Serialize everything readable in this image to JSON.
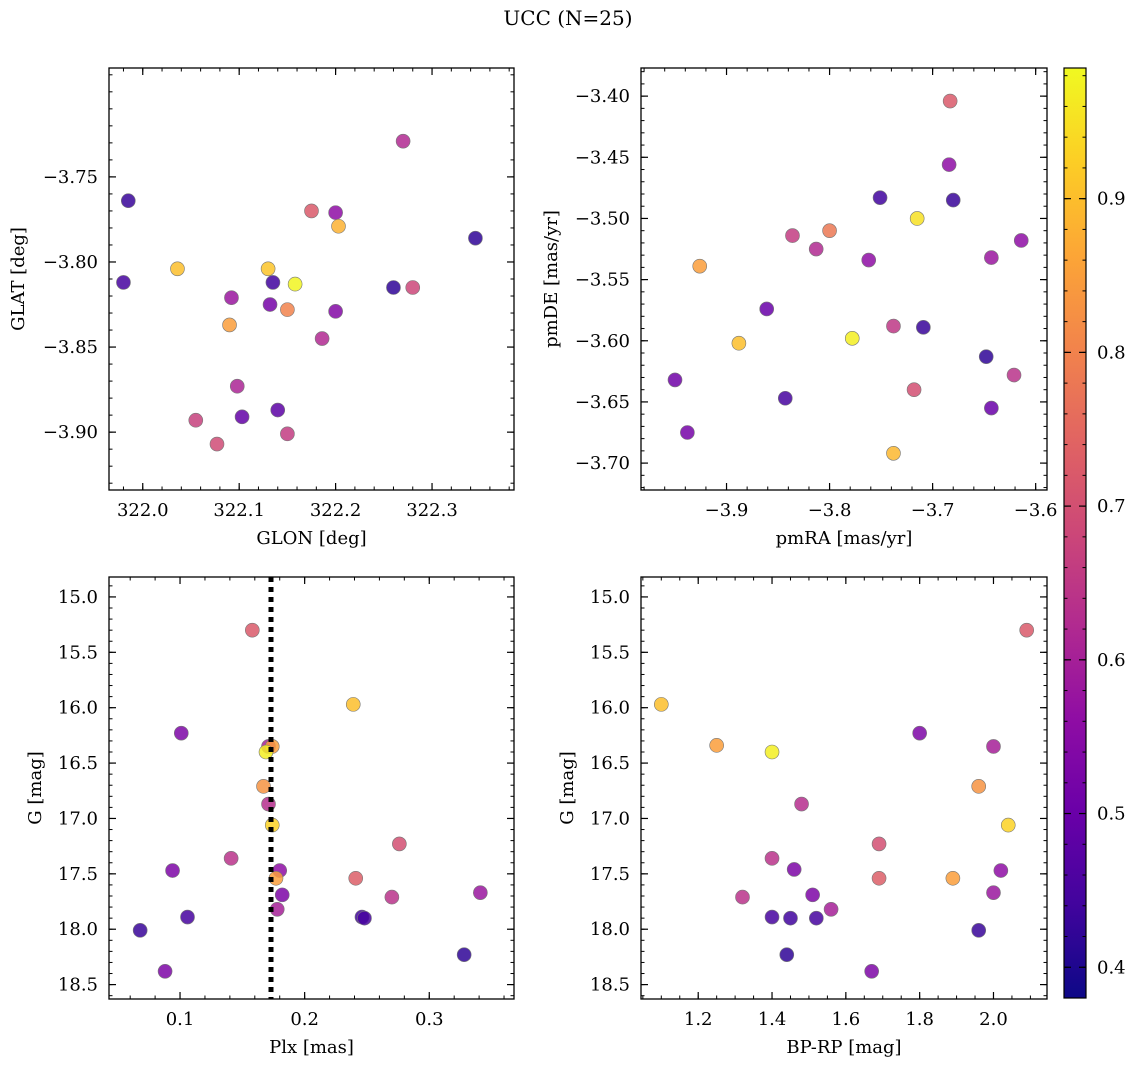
{
  "figure": {
    "title": "UCC (N=25)"
  },
  "colorbar": {
    "min": 0.38,
    "max": 0.985,
    "ticks": [
      0.4,
      0.5,
      0.6,
      0.7,
      0.8,
      0.9
    ],
    "tick_labels": [
      "0.4",
      "0.5",
      "0.6",
      "0.7",
      "0.8",
      "0.9"
    ],
    "colormap": "plasma"
  },
  "chart_data": [
    {
      "type": "scatter",
      "xlabel": "GLON [deg]",
      "ylabel": "GLAT [deg]",
      "xlim": [
        321.965,
        322.385
      ],
      "ylim": [
        -3.934,
        -3.686
      ],
      "xticks": [
        322.0,
        322.1,
        322.2,
        322.3
      ],
      "xtick_labels": [
        "322.0",
        "322.1",
        "322.2",
        "322.3"
      ],
      "yticks": [
        -3.75,
        -3.8,
        -3.85,
        -3.9
      ],
      "ytick_labels": [
        "−3.75",
        "−3.80",
        "−3.85",
        "−3.90"
      ],
      "inverted_y": false,
      "points": [
        {
          "x": 322.27,
          "y": -3.729,
          "c": 0.62
        },
        {
          "x": 321.985,
          "y": -3.764,
          "c": 0.43
        },
        {
          "x": 322.175,
          "y": -3.77,
          "c": 0.72
        },
        {
          "x": 322.2,
          "y": -3.771,
          "c": 0.56
        },
        {
          "x": 322.203,
          "y": -3.779,
          "c": 0.88
        },
        {
          "x": 322.345,
          "y": -3.786,
          "c": 0.42
        },
        {
          "x": 322.036,
          "y": -3.804,
          "c": 0.9
        },
        {
          "x": 322.13,
          "y": -3.804,
          "c": 0.91
        },
        {
          "x": 321.98,
          "y": -3.812,
          "c": 0.45
        },
        {
          "x": 322.135,
          "y": -3.812,
          "c": 0.44
        },
        {
          "x": 322.158,
          "y": -3.813,
          "c": 0.98
        },
        {
          "x": 322.26,
          "y": -3.815,
          "c": 0.42
        },
        {
          "x": 322.28,
          "y": -3.815,
          "c": 0.68
        },
        {
          "x": 322.092,
          "y": -3.821,
          "c": 0.58
        },
        {
          "x": 322.132,
          "y": -3.825,
          "c": 0.52
        },
        {
          "x": 322.15,
          "y": -3.828,
          "c": 0.8
        },
        {
          "x": 322.2,
          "y": -3.829,
          "c": 0.54
        },
        {
          "x": 322.09,
          "y": -3.837,
          "c": 0.85
        },
        {
          "x": 322.186,
          "y": -3.845,
          "c": 0.62
        },
        {
          "x": 322.098,
          "y": -3.873,
          "c": 0.61
        },
        {
          "x": 322.14,
          "y": -3.887,
          "c": 0.48
        },
        {
          "x": 322.055,
          "y": -3.893,
          "c": 0.67
        },
        {
          "x": 322.103,
          "y": -3.891,
          "c": 0.49
        },
        {
          "x": 322.15,
          "y": -3.901,
          "c": 0.66
        },
        {
          "x": 322.077,
          "y": -3.907,
          "c": 0.69
        }
      ]
    },
    {
      "type": "scatter",
      "xlabel": "pmRA [mas/yr]",
      "ylabel": "pmDE [mas/yr]",
      "xlim": [
        -3.983,
        -3.589
      ],
      "ylim": [
        -3.722,
        -3.377
      ],
      "xticks": [
        -3.9,
        -3.8,
        -3.7,
        -3.6
      ],
      "xtick_labels": [
        "−3.9",
        "−3.8",
        "−3.7",
        "−3.6"
      ],
      "yticks": [
        -3.4,
        -3.45,
        -3.5,
        -3.55,
        -3.6,
        -3.65,
        -3.7
      ],
      "ytick_labels": [
        "−3.40",
        "−3.45",
        "−3.50",
        "−3.55",
        "−3.60",
        "−3.65",
        "−3.70"
      ],
      "inverted_y": false,
      "points": [
        {
          "x": -3.683,
          "y": -3.404,
          "c": 0.72
        },
        {
          "x": -3.684,
          "y": -3.456,
          "c": 0.56
        },
        {
          "x": -3.751,
          "y": -3.483,
          "c": 0.44
        },
        {
          "x": -3.68,
          "y": -3.485,
          "c": 0.43
        },
        {
          "x": -3.715,
          "y": -3.5,
          "c": 0.95
        },
        {
          "x": -3.8,
          "y": -3.51,
          "c": 0.78
        },
        {
          "x": -3.836,
          "y": -3.514,
          "c": 0.66
        },
        {
          "x": -3.614,
          "y": -3.518,
          "c": 0.56
        },
        {
          "x": -3.813,
          "y": -3.525,
          "c": 0.62
        },
        {
          "x": -3.643,
          "y": -3.532,
          "c": 0.58
        },
        {
          "x": -3.762,
          "y": -3.534,
          "c": 0.56
        },
        {
          "x": -3.926,
          "y": -3.539,
          "c": 0.85
        },
        {
          "x": -3.861,
          "y": -3.574,
          "c": 0.5
        },
        {
          "x": -3.738,
          "y": -3.588,
          "c": 0.65
        },
        {
          "x": -3.709,
          "y": -3.589,
          "c": 0.43
        },
        {
          "x": -3.778,
          "y": -3.598,
          "c": 0.97
        },
        {
          "x": -3.888,
          "y": -3.602,
          "c": 0.9
        },
        {
          "x": -3.648,
          "y": -3.613,
          "c": 0.42
        },
        {
          "x": -3.621,
          "y": -3.628,
          "c": 0.64
        },
        {
          "x": -3.95,
          "y": -3.632,
          "c": 0.51
        },
        {
          "x": -3.718,
          "y": -3.64,
          "c": 0.7
        },
        {
          "x": -3.843,
          "y": -3.647,
          "c": 0.45
        },
        {
          "x": -3.643,
          "y": -3.655,
          "c": 0.5
        },
        {
          "x": -3.938,
          "y": -3.675,
          "c": 0.52
        },
        {
          "x": -3.738,
          "y": -3.692,
          "c": 0.89
        }
      ]
    },
    {
      "type": "scatter",
      "xlabel": "Plx [mas]",
      "ylabel": "G [mag]",
      "xlim": [
        0.043,
        0.368
      ],
      "ylim": [
        18.63,
        14.82
      ],
      "xticks": [
        0.1,
        0.2,
        0.3
      ],
      "xtick_labels": [
        "0.1",
        "0.2",
        "0.3"
      ],
      "yticks": [
        15.0,
        15.5,
        16.0,
        16.5,
        17.0,
        17.5,
        18.0,
        18.5
      ],
      "ytick_labels": [
        "15.0",
        "15.5",
        "16.0",
        "16.5",
        "17.0",
        "17.5",
        "18.0",
        "18.5"
      ],
      "inverted_y": true,
      "vline": {
        "x": 0.173,
        "style": "dotted"
      },
      "points": [
        {
          "x": 0.158,
          "y": 15.3,
          "c": 0.72
        },
        {
          "x": 0.239,
          "y": 15.97,
          "c": 0.9
        },
        {
          "x": 0.101,
          "y": 16.23,
          "c": 0.53
        },
        {
          "x": 0.171,
          "y": 16.35,
          "c": 0.6
        },
        {
          "x": 0.174,
          "y": 16.35,
          "c": 0.85
        },
        {
          "x": 0.169,
          "y": 16.4,
          "c": 0.97
        },
        {
          "x": 0.167,
          "y": 16.71,
          "c": 0.83
        },
        {
          "x": 0.171,
          "y": 16.87,
          "c": 0.63
        },
        {
          "x": 0.174,
          "y": 17.06,
          "c": 0.93
        },
        {
          "x": 0.276,
          "y": 17.23,
          "c": 0.7
        },
        {
          "x": 0.141,
          "y": 17.36,
          "c": 0.64
        },
        {
          "x": 0.094,
          "y": 17.47,
          "c": 0.53
        },
        {
          "x": 0.18,
          "y": 17.47,
          "c": 0.56
        },
        {
          "x": 0.241,
          "y": 17.54,
          "c": 0.73
        },
        {
          "x": 0.177,
          "y": 17.54,
          "c": 0.85
        },
        {
          "x": 0.341,
          "y": 17.67,
          "c": 0.58
        },
        {
          "x": 0.182,
          "y": 17.69,
          "c": 0.53
        },
        {
          "x": 0.27,
          "y": 17.71,
          "c": 0.64
        },
        {
          "x": 0.178,
          "y": 17.82,
          "c": 0.6
        },
        {
          "x": 0.106,
          "y": 17.89,
          "c": 0.45
        },
        {
          "x": 0.246,
          "y": 17.89,
          "c": 0.44
        },
        {
          "x": 0.248,
          "y": 17.9,
          "c": 0.45
        },
        {
          "x": 0.068,
          "y": 18.01,
          "c": 0.43
        },
        {
          "x": 0.328,
          "y": 18.23,
          "c": 0.42
        },
        {
          "x": 0.088,
          "y": 18.38,
          "c": 0.53
        }
      ]
    },
    {
      "type": "scatter",
      "xlabel": "BP-RP [mag]",
      "ylabel": "G [mag]",
      "xlim": [
        1.045,
        2.145
      ],
      "ylim": [
        18.63,
        14.82
      ],
      "xticks": [
        1.2,
        1.4,
        1.6,
        1.8,
        2.0
      ],
      "xtick_labels": [
        "1.2",
        "1.4",
        "1.6",
        "1.8",
        "2.0"
      ],
      "yticks": [
        15.0,
        15.5,
        16.0,
        16.5,
        17.0,
        17.5,
        18.0,
        18.5
      ],
      "ytick_labels": [
        "15.0",
        "15.5",
        "16.0",
        "16.5",
        "17.0",
        "17.5",
        "18.0",
        "18.5"
      ],
      "inverted_y": true,
      "points": [
        {
          "x": 2.09,
          "y": 15.3,
          "c": 0.72
        },
        {
          "x": 1.1,
          "y": 15.97,
          "c": 0.9
        },
        {
          "x": 1.8,
          "y": 16.23,
          "c": 0.53
        },
        {
          "x": 1.25,
          "y": 16.34,
          "c": 0.85
        },
        {
          "x": 2.0,
          "y": 16.35,
          "c": 0.6
        },
        {
          "x": 1.4,
          "y": 16.4,
          "c": 0.97
        },
        {
          "x": 1.96,
          "y": 16.71,
          "c": 0.83
        },
        {
          "x": 1.48,
          "y": 16.87,
          "c": 0.63
        },
        {
          "x": 2.04,
          "y": 17.06,
          "c": 0.93
        },
        {
          "x": 1.69,
          "y": 17.23,
          "c": 0.7
        },
        {
          "x": 1.4,
          "y": 17.36,
          "c": 0.64
        },
        {
          "x": 1.46,
          "y": 17.46,
          "c": 0.53
        },
        {
          "x": 2.02,
          "y": 17.47,
          "c": 0.56
        },
        {
          "x": 1.69,
          "y": 17.54,
          "c": 0.73
        },
        {
          "x": 1.89,
          "y": 17.54,
          "c": 0.85
        },
        {
          "x": 2.0,
          "y": 17.67,
          "c": 0.58
        },
        {
          "x": 1.51,
          "y": 17.69,
          "c": 0.53
        },
        {
          "x": 1.32,
          "y": 17.71,
          "c": 0.64
        },
        {
          "x": 1.56,
          "y": 17.82,
          "c": 0.6
        },
        {
          "x": 1.4,
          "y": 17.89,
          "c": 0.45
        },
        {
          "x": 1.45,
          "y": 17.9,
          "c": 0.44
        },
        {
          "x": 1.52,
          "y": 17.9,
          "c": 0.45
        },
        {
          "x": 1.96,
          "y": 18.01,
          "c": 0.43
        },
        {
          "x": 1.44,
          "y": 18.23,
          "c": 0.42
        },
        {
          "x": 1.67,
          "y": 18.38,
          "c": 0.53
        }
      ]
    }
  ]
}
